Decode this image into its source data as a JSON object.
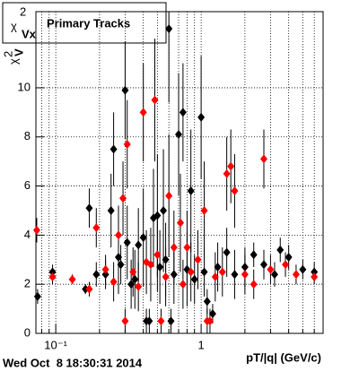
{
  "chart_data": {
    "type": "scatter",
    "title_symbol": "χ",
    "title_sup": "2",
    "title_sub": "Vx",
    "title": "Primary Tracks",
    "y_label_symbol": "χ",
    "y_label_sup": "2",
    "y_label_sub": "V",
    "x_label": "pT/|q| (GeV/c)",
    "footer": "Wed Oct  8 18:30:31 2014",
    "log_x": true,
    "grid": true,
    "xlim": [
      0.073,
      6.9
    ],
    "ylim": [
      0,
      13.1
    ],
    "xticks": [
      {
        "value": 0.1,
        "label": "10⁻¹"
      },
      1
    ],
    "x_minor_ticks": [
      0.08,
      0.09,
      0.2,
      0.3,
      0.4,
      0.5,
      0.6,
      0.7,
      0.8,
      0.9,
      2,
      3,
      4,
      5,
      6
    ],
    "yticks": [
      0,
      2,
      4,
      6,
      8,
      10
    ],
    "series": [
      {
        "color": "#000000",
        "x": [
          0.075,
          0.095,
          0.16,
          0.17,
          0.19,
          0.22,
          0.24,
          0.25,
          0.27,
          0.28,
          0.3,
          0.31,
          0.33,
          0.35,
          0.37,
          0.4,
          0.42,
          0.44,
          0.47,
          0.5,
          0.52,
          0.55,
          0.57,
          0.6,
          0.62,
          0.65,
          0.7,
          0.75,
          0.8,
          0.85,
          0.9,
          1.0,
          1.05,
          1.1,
          1.2,
          1.3,
          1.5,
          1.7,
          2.0,
          2.3,
          2.7,
          3.2,
          3.5,
          4.0,
          5.0,
          6.0
        ],
        "values": [
          1.5,
          2.5,
          1.8,
          5.1,
          2.4,
          2.4,
          5.0,
          7.5,
          3.1,
          2.8,
          9.9,
          3.7,
          2.0,
          2.2,
          3.6,
          3.9,
          0.5,
          0.5,
          4.7,
          4.8,
          2.7,
          5.0,
          3.0,
          12.4,
          0.5,
          2.4,
          8.1,
          9.0,
          2.6,
          5.8,
          2.2,
          8.8,
          2.5,
          1.3,
          0.8,
          2.7,
          3.3,
          2.4,
          2.7,
          3.2,
          2.8,
          2.4,
          3.4,
          3.1,
          2.6,
          2.5
        ],
        "errors": [
          0.3,
          0.3,
          0.2,
          0.8,
          0.5,
          0.6,
          1.5,
          1.5,
          1.5,
          0.8,
          2,
          1.5,
          1,
          1.2,
          1.5,
          2,
          0.5,
          0.5,
          2,
          2.5,
          1.5,
          2.5,
          1.5,
          3,
          0.5,
          1.2,
          2.5,
          2,
          1.5,
          2.5,
          1,
          2.5,
          1,
          0.5,
          0.4,
          1,
          1,
          1,
          0.8,
          0.5,
          0.6,
          0.5,
          0.5,
          0.5,
          0.4,
          0.4
        ]
      },
      {
        "color": "#ff0000",
        "x": [
          0.074,
          0.095,
          0.13,
          0.17,
          0.19,
          0.22,
          0.25,
          0.27,
          0.29,
          0.3,
          0.31,
          0.34,
          0.37,
          0.4,
          0.42,
          0.45,
          0.48,
          0.5,
          0.53,
          0.57,
          0.6,
          0.65,
          0.72,
          0.75,
          0.8,
          0.85,
          0.95,
          1.05,
          1.1,
          1.15,
          1.25,
          1.4,
          1.5,
          1.6,
          1.7,
          2.0,
          2.3,
          2.7,
          3.0,
          3.8,
          4.5,
          6.0
        ],
        "values": [
          4.2,
          2.3,
          2.2,
          1.8,
          4.3,
          2.6,
          2.1,
          4.0,
          5.5,
          0.5,
          7.7,
          2.5,
          1.9,
          9.0,
          2.9,
          2.8,
          9.5,
          3.2,
          0.5,
          2.3,
          5.6,
          3.5,
          4.5,
          2.0,
          3.5,
          2.5,
          3.0,
          5.0,
          0.5,
          0.5,
          2.3,
          2.5,
          6.5,
          6.8,
          5.8,
          2.4,
          2.0,
          7.1,
          2.6,
          2.8,
          2.4,
          2.3
        ],
        "errors": [
          0.5,
          0.3,
          0.2,
          0.3,
          0.8,
          0.6,
          0.8,
          1.2,
          1.5,
          0.5,
          1.8,
          1,
          1,
          2,
          1.3,
          1.5,
          2.5,
          1.5,
          0.5,
          1.2,
          2.5,
          1.5,
          2,
          1,
          1.5,
          1.2,
          1.2,
          2,
          0.5,
          0.5,
          1,
          1,
          1.5,
          1.5,
          1.5,
          0.8,
          0.6,
          1.2,
          0.6,
          0.5,
          0.4,
          0.3
        ]
      }
    ]
  }
}
